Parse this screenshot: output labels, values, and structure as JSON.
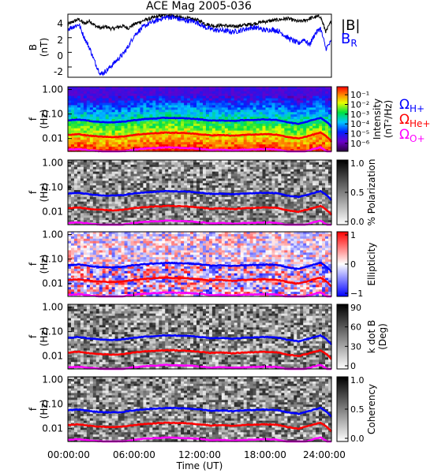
{
  "chart_data": [
    {
      "type": "line",
      "title": "ACE Mag 2005-036",
      "ylabel": "B",
      "yunit": "(nT)",
      "ylim": [
        -3.4,
        5.2
      ],
      "yticks": [
        -2,
        0,
        2,
        4
      ],
      "xlim": [
        0,
        24
      ],
      "legend": [
        "|B|",
        "B",
        "R"
      ],
      "series": [
        {
          "name": "|B|",
          "color": "#000000",
          "x": [
            0,
            0.5,
            1,
            1.5,
            2,
            2.5,
            3,
            3.5,
            4,
            4.5,
            5,
            5.5,
            6,
            6.5,
            7,
            7.5,
            8,
            8.5,
            9,
            9.5,
            10,
            10.5,
            11,
            11.5,
            12,
            12.5,
            13,
            13.5,
            14,
            14.5,
            15,
            15.5,
            16,
            16.5,
            17,
            17.5,
            18,
            18.5,
            19,
            19.5,
            20,
            20.5,
            21,
            21.5,
            22,
            22.5,
            23,
            23.5,
            24
          ],
          "values": [
            3.8,
            4.2,
            4.5,
            3.9,
            4.3,
            3.6,
            3.3,
            3.5,
            3.2,
            3.4,
            3.6,
            3.3,
            3.8,
            4.1,
            4.4,
            4.6,
            4.8,
            5.0,
            5.1,
            5.0,
            4.8,
            4.7,
            4.6,
            4.5,
            4.3,
            3.9,
            3.7,
            3.6,
            3.7,
            3.6,
            3.5,
            3.6,
            3.7,
            3.8,
            3.9,
            4.1,
            4.2,
            4.3,
            4.4,
            4.5,
            4.6,
            4.4,
            4.2,
            4.3,
            4.6,
            4.8,
            4.9,
            2.8,
            4.3
          ]
        },
        {
          "name": "BR",
          "color": "#0000ff",
          "x": [
            0,
            0.5,
            1,
            1.5,
            2,
            2.5,
            3,
            3.5,
            4,
            4.5,
            5,
            5.5,
            6,
            6.5,
            7,
            7.5,
            8,
            8.5,
            9,
            9.5,
            10,
            10.5,
            11,
            11.5,
            12,
            12.5,
            13,
            13.5,
            14,
            14.5,
            15,
            15.5,
            16,
            16.5,
            17,
            17.5,
            18,
            18.5,
            19,
            19.5,
            20,
            20.5,
            21,
            21.5,
            22,
            22.5,
            23,
            23.5,
            24
          ],
          "values": [
            3.2,
            3.5,
            3.8,
            2.0,
            0.5,
            -1.5,
            -3.0,
            -2.5,
            -1.8,
            -1.0,
            -0.3,
            0.8,
            2.2,
            3.0,
            3.6,
            4.0,
            4.3,
            4.6,
            4.8,
            4.8,
            4.6,
            4.4,
            4.3,
            4.2,
            3.9,
            3.4,
            3.2,
            3.0,
            3.0,
            2.9,
            2.8,
            2.9,
            3.1,
            3.3,
            3.4,
            3.2,
            3.0,
            3.1,
            3.0,
            2.6,
            2.0,
            1.6,
            1.2,
            1.8,
            1.0,
            2.5,
            3.3,
            0.5,
            1.5
          ]
        }
      ]
    },
    {
      "type": "heatmap",
      "ylabel": "f",
      "yunit": "(Hz)",
      "yscale": "log",
      "ylim": [
        0.003,
        1.3
      ],
      "yticks": [
        "1.00",
        "0.10",
        "0.01"
      ],
      "colorbar": {
        "label": "Intensity",
        "unit": "(nT²/Hz)",
        "colormap": "rainbow",
        "ticks": [
          "10⁻¹",
          "10⁻²",
          "10⁻³",
          "10⁻⁴",
          "10⁻⁵",
          "10⁻⁶"
        ],
        "range_log10": [
          -6.5,
          -0.5
        ]
      },
      "legend": [
        {
          "text": "Ω",
          "sub": "H+",
          "color": "#0000ff"
        },
        {
          "text": "Ω",
          "sub": "He+",
          "color": "#ff0000"
        },
        {
          "text": "Ω",
          "sub": "O+",
          "color": "#ff00ff"
        }
      ]
    },
    {
      "type": "heatmap",
      "ylabel": "f",
      "yunit": "(Hz)",
      "yscale": "log",
      "ylim": [
        0.003,
        1.3
      ],
      "yticks": [
        "1.00",
        "0.10",
        "0.01"
      ],
      "colorbar": {
        "label": "% Polarization",
        "colormap": "gray_reversed",
        "ticks": [
          "1.0",
          "0.5",
          "0.0"
        ],
        "range": [
          0,
          1
        ]
      }
    },
    {
      "type": "heatmap",
      "ylabel": "f",
      "yunit": "(Hz)",
      "yscale": "log",
      "ylim": [
        0.003,
        1.3
      ],
      "yticks": [
        "1.00",
        "0.10",
        "0.01"
      ],
      "colorbar": {
        "label": "Ellipticity",
        "colormap": "blue_white_red",
        "ticks": [
          "1",
          "0",
          "−1"
        ],
        "range": [
          -1,
          1
        ]
      }
    },
    {
      "type": "heatmap",
      "ylabel": "f",
      "yunit": "(Hz)",
      "yscale": "log",
      "ylim": [
        0.003,
        1.3
      ],
      "yticks": [
        "1.00",
        "0.10",
        "0.01"
      ],
      "colorbar": {
        "label": "k dot B",
        "unit": "(Deg)",
        "colormap": "gray_reversed",
        "ticks": [
          "90",
          "60",
          "30",
          "0"
        ],
        "range": [
          0,
          90
        ]
      }
    },
    {
      "type": "heatmap",
      "ylabel": "f",
      "yunit": "(Hz)",
      "yscale": "log",
      "ylim": [
        0.003,
        1.3
      ],
      "yticks": [
        "1.00",
        "0.10",
        "0.01"
      ],
      "colorbar": {
        "label": "Coherency",
        "colormap": "gray_reversed",
        "ticks": [
          "1.0",
          "0.5",
          "0.0"
        ],
        "range": [
          0,
          1
        ]
      },
      "xlabel": "Time (UT)",
      "xticks": [
        "00:00:00",
        "06:00:00",
        "12:00:00",
        "18:00:00",
        "24:00:00"
      ]
    }
  ],
  "gyrofrequencies": {
    "x": [
      0,
      1,
      2,
      3,
      4,
      5,
      6,
      7,
      8,
      9,
      10,
      11,
      12,
      13,
      14,
      15,
      16,
      17,
      18,
      19,
      20,
      21,
      22,
      23,
      24
    ],
    "H+": [
      0.056,
      0.06,
      0.052,
      0.047,
      0.046,
      0.048,
      0.056,
      0.062,
      0.066,
      0.07,
      0.068,
      0.066,
      0.061,
      0.054,
      0.055,
      0.052,
      0.056,
      0.058,
      0.06,
      0.058,
      0.046,
      0.04,
      0.052,
      0.07,
      0.03
    ],
    "He+": [
      0.014,
      0.015,
      0.013,
      0.012,
      0.0115,
      0.012,
      0.014,
      0.0155,
      0.0165,
      0.0175,
      0.017,
      0.0165,
      0.015,
      0.0135,
      0.014,
      0.013,
      0.014,
      0.0145,
      0.015,
      0.0145,
      0.0115,
      0.01,
      0.013,
      0.0175,
      0.0075
    ],
    "O+": [
      0.0035,
      0.0037,
      0.0033,
      0.003,
      0.0029,
      0.003,
      0.0035,
      0.0039,
      0.0041,
      0.0044,
      0.0042,
      0.0041,
      0.0038,
      0.0034,
      0.0035,
      0.0033,
      0.0035,
      0.0036,
      0.0037,
      0.0036,
      0.0029,
      0.0025,
      0.0033,
      0.0044,
      0.0019
    ]
  }
}
